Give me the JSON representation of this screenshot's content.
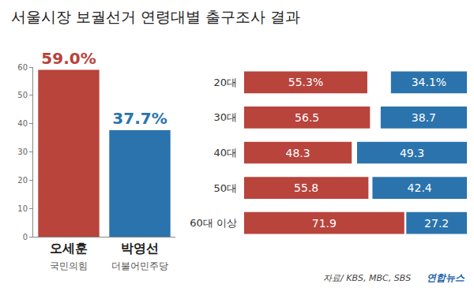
{
  "chart_data": [
    {
      "type": "bar",
      "title": "서울시장 보궐선거 연령대별 출구조사 결과",
      "categories": [
        "오세훈",
        "박영선"
      ],
      "parties": [
        "국민의힘",
        "더불어민주당"
      ],
      "values": [
        59.0,
        37.7
      ],
      "value_labels": [
        "59.0%",
        "37.7%"
      ],
      "colors": [
        "#b8443c",
        "#2b73ad"
      ],
      "ylim": [
        0,
        60
      ],
      "yticks": [
        0,
        10,
        20,
        30,
        40,
        50,
        60
      ],
      "grid": false,
      "data_labels": true
    },
    {
      "type": "bar",
      "orientation": "horizontal",
      "categories": [
        "20대",
        "30대",
        "40대",
        "50대",
        "60대 이상"
      ],
      "series": [
        {
          "color": "#b8443c",
          "values": [
            55.3,
            56.5,
            48.3,
            55.8,
            71.9
          ],
          "value_labels": [
            "55.3%",
            "56.5",
            "48.3",
            "55.8",
            "71.9"
          ]
        },
        {
          "color": "#2b73ad",
          "values": [
            34.1,
            38.7,
            49.3,
            42.4,
            27.2
          ],
          "value_labels": [
            "34.1%",
            "38.7",
            "49.3",
            "42.4",
            "27.2"
          ]
        }
      ],
      "xlim": [
        0,
        100
      ],
      "tick_labels": "y",
      "grid": false,
      "data_labels": true,
      "annotations": [
        "자료/ KBS, MBC, SBS",
        "연합뉴스"
      ]
    }
  ]
}
